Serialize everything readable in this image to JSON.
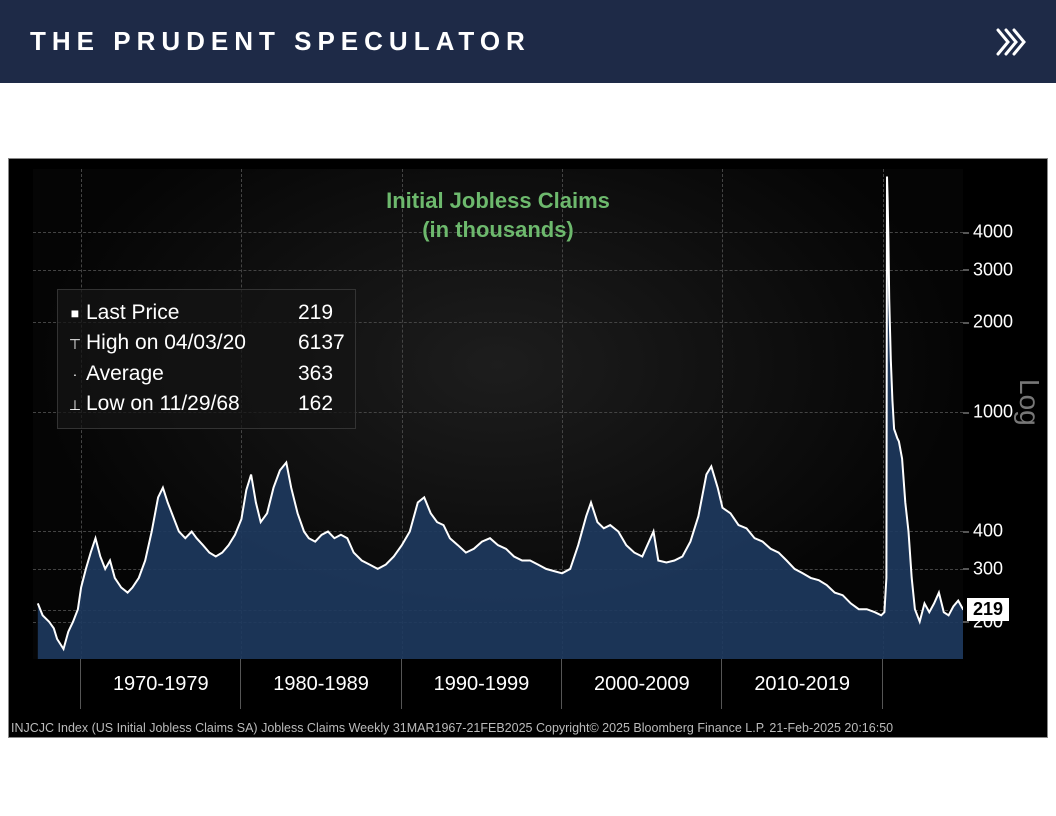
{
  "header": {
    "brand": "THE PRUDENT SPECULATOR"
  },
  "chart": {
    "type": "area-log",
    "title_line1": "Initial Jobless Claims",
    "title_line2": "(in thousands)",
    "title_color": "#6db96d",
    "title_fontsize": 22,
    "background_color": "#000000",
    "plot_bg_gradient_inner": "#1d1d1d",
    "plot_bg_gradient_outer": "#050505",
    "grid_color": "#444444",
    "line_color": "#ffffff",
    "fill_color": "#1e3a5f",
    "line_width": 2,
    "scale": "log",
    "log_label": "Log",
    "ylim": [
      150,
      6500
    ],
    "y_ticks": [
      200,
      219,
      300,
      400,
      1000,
      2000,
      3000,
      4000
    ],
    "last_value": 219,
    "x_start_year": 1967,
    "x_end_year": 2025,
    "x_decade_labels": [
      "1970-1979",
      "1980-1989",
      "1990-1999",
      "2000-2009",
      "2010-2019"
    ],
    "stats": {
      "last_price_label": "Last Price",
      "last_price_value": "219",
      "high_label": "High on 04/03/20",
      "high_value": "6137",
      "avg_label": "Average",
      "avg_value": "363",
      "low_label": "Low on 11/29/68",
      "low_value": "162"
    },
    "footer": "INJCJC Index (US Initial Jobless Claims SA) Jobless Claims   Weekly 31MAR1967-21FEB2025   Copyright© 2025 Bloomberg Finance L.P.   21-Feb-2025 20:16:50",
    "series": [
      [
        1967.3,
        230
      ],
      [
        1967.6,
        210
      ],
      [
        1968.0,
        200
      ],
      [
        1968.3,
        190
      ],
      [
        1968.5,
        175
      ],
      [
        1968.9,
        162
      ],
      [
        1969.2,
        185
      ],
      [
        1969.5,
        200
      ],
      [
        1969.8,
        220
      ],
      [
        1970.0,
        260
      ],
      [
        1970.3,
        300
      ],
      [
        1970.6,
        340
      ],
      [
        1970.9,
        380
      ],
      [
        1971.2,
        330
      ],
      [
        1971.5,
        300
      ],
      [
        1971.8,
        320
      ],
      [
        1972.1,
        280
      ],
      [
        1972.5,
        260
      ],
      [
        1972.9,
        250
      ],
      [
        1973.2,
        260
      ],
      [
        1973.6,
        280
      ],
      [
        1974.0,
        320
      ],
      [
        1974.4,
        400
      ],
      [
        1974.8,
        520
      ],
      [
        1975.1,
        560
      ],
      [
        1975.4,
        500
      ],
      [
        1975.8,
        440
      ],
      [
        1976.1,
        400
      ],
      [
        1976.5,
        380
      ],
      [
        1976.9,
        400
      ],
      [
        1977.2,
        380
      ],
      [
        1977.6,
        360
      ],
      [
        1978.0,
        340
      ],
      [
        1978.4,
        330
      ],
      [
        1978.8,
        340
      ],
      [
        1979.2,
        360
      ],
      [
        1979.6,
        390
      ],
      [
        1980.0,
        440
      ],
      [
        1980.3,
        550
      ],
      [
        1980.6,
        620
      ],
      [
        1980.9,
        500
      ],
      [
        1981.2,
        430
      ],
      [
        1981.6,
        460
      ],
      [
        1982.0,
        560
      ],
      [
        1982.4,
        640
      ],
      [
        1982.8,
        680
      ],
      [
        1983.1,
        560
      ],
      [
        1983.5,
        460
      ],
      [
        1983.9,
        400
      ],
      [
        1984.2,
        380
      ],
      [
        1984.6,
        370
      ],
      [
        1985.0,
        390
      ],
      [
        1985.4,
        400
      ],
      [
        1985.8,
        380
      ],
      [
        1986.2,
        390
      ],
      [
        1986.6,
        380
      ],
      [
        1987.0,
        340
      ],
      [
        1987.5,
        320
      ],
      [
        1988.0,
        310
      ],
      [
        1988.5,
        300
      ],
      [
        1989.0,
        310
      ],
      [
        1989.5,
        330
      ],
      [
        1990.0,
        360
      ],
      [
        1990.5,
        400
      ],
      [
        1991.0,
        500
      ],
      [
        1991.4,
        520
      ],
      [
        1991.8,
        460
      ],
      [
        1992.2,
        430
      ],
      [
        1992.6,
        420
      ],
      [
        1993.0,
        380
      ],
      [
        1993.5,
        360
      ],
      [
        1994.0,
        340
      ],
      [
        1994.5,
        350
      ],
      [
        1995.0,
        370
      ],
      [
        1995.5,
        380
      ],
      [
        1996.0,
        360
      ],
      [
        1996.5,
        350
      ],
      [
        1997.0,
        330
      ],
      [
        1997.5,
        320
      ],
      [
        1998.0,
        320
      ],
      [
        1998.5,
        310
      ],
      [
        1999.0,
        300
      ],
      [
        1999.5,
        295
      ],
      [
        2000.0,
        290
      ],
      [
        2000.5,
        300
      ],
      [
        2001.0,
        360
      ],
      [
        2001.5,
        450
      ],
      [
        2001.8,
        500
      ],
      [
        2002.2,
        430
      ],
      [
        2002.6,
        410
      ],
      [
        2003.0,
        420
      ],
      [
        2003.5,
        400
      ],
      [
        2004.0,
        360
      ],
      [
        2004.5,
        340
      ],
      [
        2005.0,
        330
      ],
      [
        2005.7,
        400
      ],
      [
        2006.0,
        320
      ],
      [
        2006.5,
        315
      ],
      [
        2007.0,
        320
      ],
      [
        2007.5,
        330
      ],
      [
        2008.0,
        370
      ],
      [
        2008.5,
        450
      ],
      [
        2009.0,
        620
      ],
      [
        2009.3,
        660
      ],
      [
        2009.7,
        560
      ],
      [
        2010.0,
        480
      ],
      [
        2010.5,
        460
      ],
      [
        2011.0,
        420
      ],
      [
        2011.5,
        410
      ],
      [
        2012.0,
        380
      ],
      [
        2012.5,
        370
      ],
      [
        2013.0,
        350
      ],
      [
        2013.5,
        340
      ],
      [
        2014.0,
        320
      ],
      [
        2014.5,
        300
      ],
      [
        2015.0,
        290
      ],
      [
        2015.5,
        280
      ],
      [
        2016.0,
        275
      ],
      [
        2016.5,
        265
      ],
      [
        2017.0,
        250
      ],
      [
        2017.5,
        245
      ],
      [
        2018.0,
        230
      ],
      [
        2018.5,
        220
      ],
      [
        2019.0,
        220
      ],
      [
        2019.5,
        215
      ],
      [
        2019.9,
        210
      ],
      [
        2020.1,
        215
      ],
      [
        2020.22,
        280
      ],
      [
        2020.26,
        6137
      ],
      [
        2020.3,
        5200
      ],
      [
        2020.35,
        3800
      ],
      [
        2020.4,
        2400
      ],
      [
        2020.5,
        1500
      ],
      [
        2020.6,
        1100
      ],
      [
        2020.7,
        880
      ],
      [
        2020.8,
        850
      ],
      [
        2020.9,
        820
      ],
      [
        2021.0,
        800
      ],
      [
        2021.2,
        700
      ],
      [
        2021.4,
        500
      ],
      [
        2021.6,
        400
      ],
      [
        2021.8,
        280
      ],
      [
        2022.0,
        220
      ],
      [
        2022.3,
        200
      ],
      [
        2022.6,
        230
      ],
      [
        2022.9,
        215
      ],
      [
        2023.2,
        230
      ],
      [
        2023.5,
        250
      ],
      [
        2023.8,
        215
      ],
      [
        2024.1,
        210
      ],
      [
        2024.4,
        225
      ],
      [
        2024.7,
        235
      ],
      [
        2025.0,
        220
      ],
      [
        2025.14,
        219
      ]
    ]
  }
}
